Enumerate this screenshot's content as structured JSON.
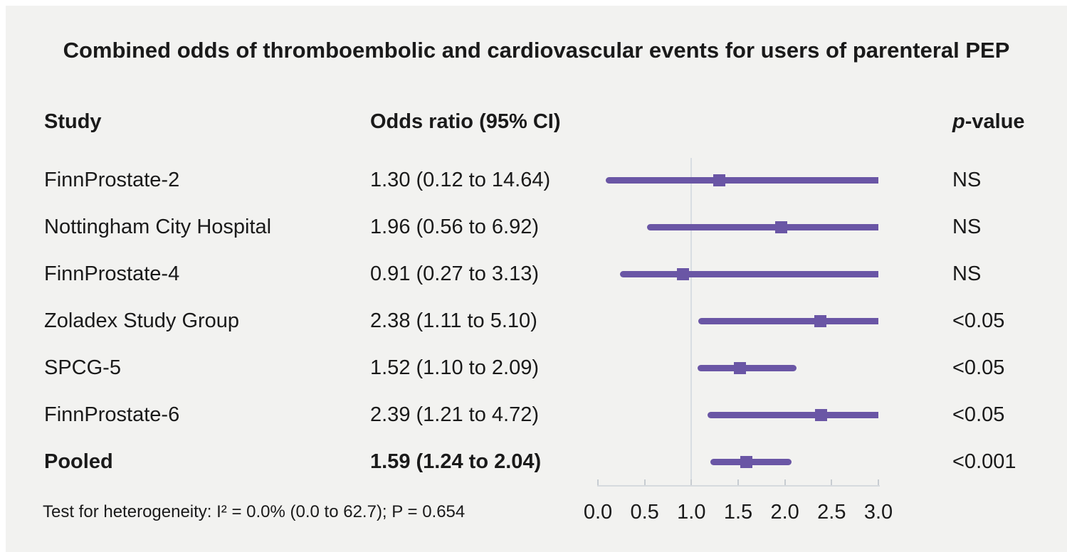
{
  "title": "Combined odds of thromboembolic and cardiovascular events for users of parenteral PEP",
  "columns": {
    "study": "Study",
    "odds_ratio": "Odds ratio (95% CI)",
    "p_italic": "p",
    "p_rest": "-value"
  },
  "footnote": "Test for heterogeneity: I² = 0.0% (0.0 to 62.7); P = 0.654",
  "colors": {
    "accent": "#6a56a5",
    "ref_line": "#d8dde2",
    "axis": "#d6dade",
    "tick": "#c7ccd1",
    "background": "#f2f2f0",
    "text": "#1a1a1a"
  },
  "chart_data": {
    "type": "forest",
    "title": "Combined odds of thromboembolic and cardiovascular events for users of parenteral PEP",
    "xlim": [
      0.0,
      3.0
    ],
    "ticks": [
      0.0,
      0.5,
      1.0,
      1.5,
      2.0,
      2.5,
      3.0
    ],
    "tick_labels": [
      "0.0",
      "0.5",
      "1.0",
      "1.5",
      "2.0",
      "2.5",
      "3.0"
    ],
    "reference_line": 1.0,
    "rows": [
      {
        "study": "FinnProstate-2",
        "or_text": "1.30 (0.12 to 14.64)",
        "or": 1.3,
        "lo": 0.12,
        "hi": 14.64,
        "p": "NS",
        "bold": false
      },
      {
        "study": "Nottingham City Hospital",
        "or_text": "1.96 (0.56 to 6.92)",
        "or": 1.96,
        "lo": 0.56,
        "hi": 6.92,
        "p": "NS",
        "bold": false
      },
      {
        "study": "FinnProstate-4",
        "or_text": "0.91 (0.27 to 3.13)",
        "or": 0.91,
        "lo": 0.27,
        "hi": 3.13,
        "p": "NS",
        "bold": false
      },
      {
        "study": "Zoladex Study Group",
        "or_text": "2.38 (1.11 to 5.10)",
        "or": 2.38,
        "lo": 1.11,
        "hi": 5.1,
        "p": "<0.05",
        "bold": false
      },
      {
        "study": "SPCG-5",
        "or_text": "1.52 (1.10 to 2.09)",
        "or": 1.52,
        "lo": 1.1,
        "hi": 2.09,
        "p": "<0.05",
        "bold": false
      },
      {
        "study": "FinnProstate-6",
        "or_text": "2.39 (1.21 to 4.72)",
        "or": 2.39,
        "lo": 1.21,
        "hi": 4.72,
        "p": "<0.05",
        "bold": false
      },
      {
        "study": "Pooled",
        "or_text": "1.59 (1.24 to 2.04)",
        "or": 1.59,
        "lo": 1.24,
        "hi": 2.04,
        "p": "<0.001",
        "bold": true
      }
    ]
  }
}
